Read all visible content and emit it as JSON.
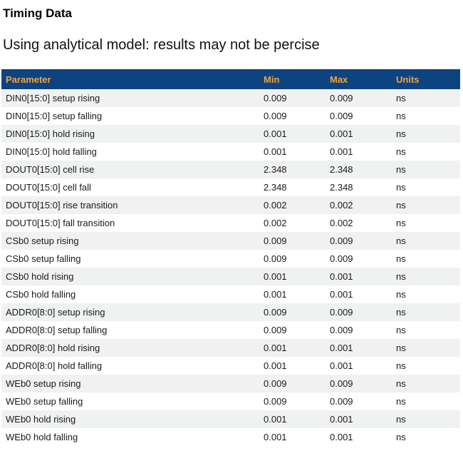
{
  "page": {
    "title": "Timing Data",
    "subtitle": "Using analytical model: results may not be percise"
  },
  "colors": {
    "header_bg": "#0d4381",
    "header_text": "#f2a33c",
    "row_alt_bg": "#f0f1f1",
    "row_text": "#1a1a1a"
  },
  "table": {
    "columns": [
      "Parameter",
      "Min",
      "Max",
      "Units"
    ],
    "rows": [
      {
        "parameter": "DIN0[15:0] setup rising",
        "min": "0.009",
        "max": "0.009",
        "units": "ns"
      },
      {
        "parameter": "DIN0[15:0] setup falling",
        "min": "0.009",
        "max": "0.009",
        "units": "ns"
      },
      {
        "parameter": "DIN0[15:0] hold rising",
        "min": "0.001",
        "max": "0.001",
        "units": "ns"
      },
      {
        "parameter": "DIN0[15:0] hold falling",
        "min": "0.001",
        "max": "0.001",
        "units": "ns"
      },
      {
        "parameter": "DOUT0[15:0] cell rise",
        "min": "2.348",
        "max": "2.348",
        "units": "ns"
      },
      {
        "parameter": "DOUT0[15:0] cell fall",
        "min": "2.348",
        "max": "2.348",
        "units": "ns"
      },
      {
        "parameter": "DOUT0[15:0] rise transition",
        "min": "0.002",
        "max": "0.002",
        "units": "ns"
      },
      {
        "parameter": "DOUT0[15:0] fall transition",
        "min": "0.002",
        "max": "0.002",
        "units": "ns"
      },
      {
        "parameter": "CSb0 setup rising",
        "min": "0.009",
        "max": "0.009",
        "units": "ns"
      },
      {
        "parameter": "CSb0 setup falling",
        "min": "0.009",
        "max": "0.009",
        "units": "ns"
      },
      {
        "parameter": "CSb0 hold rising",
        "min": "0.001",
        "max": "0.001",
        "units": "ns"
      },
      {
        "parameter": "CSb0 hold falling",
        "min": "0.001",
        "max": "0.001",
        "units": "ns"
      },
      {
        "parameter": "ADDR0[8:0] setup rising",
        "min": "0.009",
        "max": "0.009",
        "units": "ns"
      },
      {
        "parameter": "ADDR0[8:0] setup falling",
        "min": "0.009",
        "max": "0.009",
        "units": "ns"
      },
      {
        "parameter": "ADDR0[8:0] hold rising",
        "min": "0.001",
        "max": "0.001",
        "units": "ns"
      },
      {
        "parameter": "ADDR0[8:0] hold falling",
        "min": "0.001",
        "max": "0.001",
        "units": "ns"
      },
      {
        "parameter": "WEb0 setup rising",
        "min": "0.009",
        "max": "0.009",
        "units": "ns"
      },
      {
        "parameter": "WEb0 setup falling",
        "min": "0.009",
        "max": "0.009",
        "units": "ns"
      },
      {
        "parameter": "WEb0 hold rising",
        "min": "0.001",
        "max": "0.001",
        "units": "ns"
      },
      {
        "parameter": "WEb0 hold falling",
        "min": "0.001",
        "max": "0.001",
        "units": "ns"
      }
    ]
  }
}
